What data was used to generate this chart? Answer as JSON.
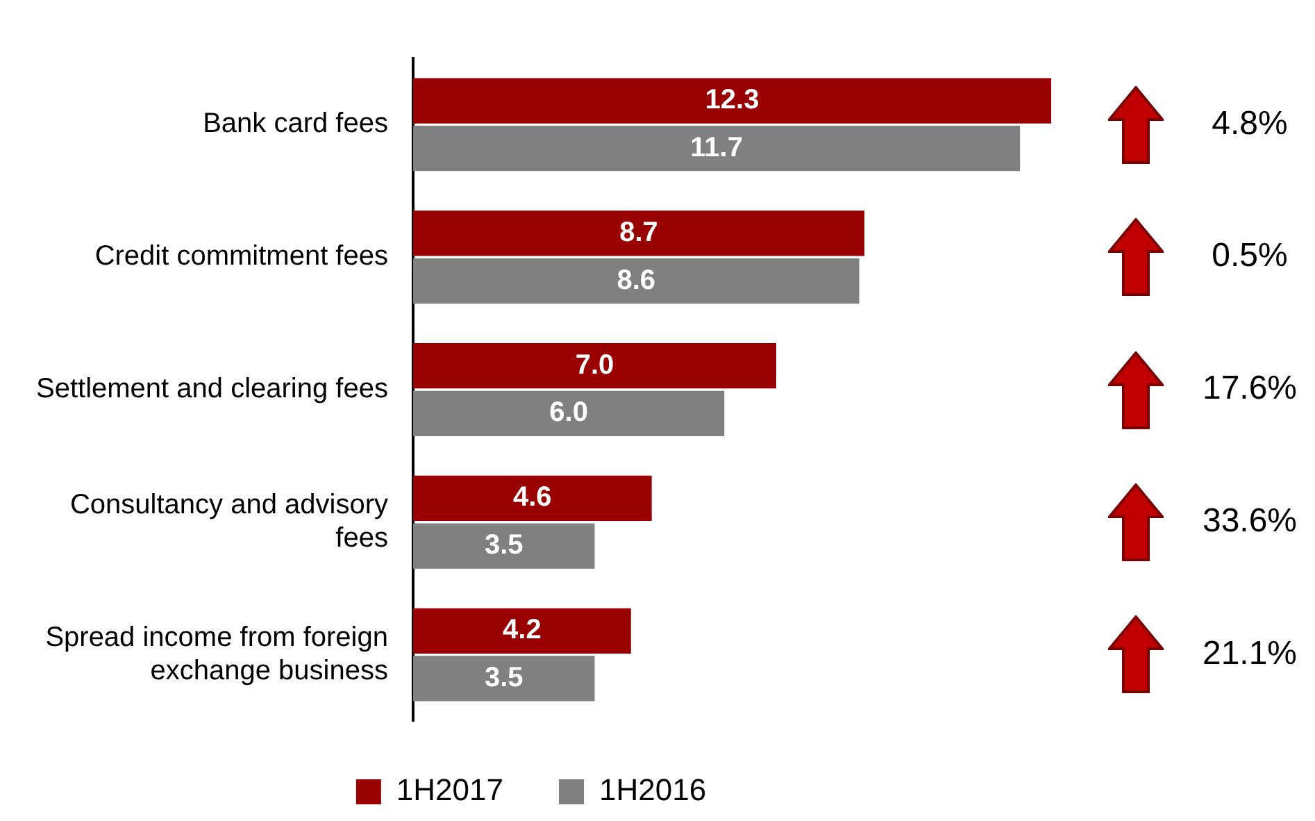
{
  "chart_data": {
    "type": "bar",
    "orientation": "horizontal",
    "categories": [
      "Bank card fees",
      "Credit commitment fees",
      "Settlement and clearing fees",
      "Consultancy and advisory fees",
      "Spread income from foreign exchange business"
    ],
    "series": [
      {
        "name": "1H2017",
        "color": "#990000",
        "values": [
          12.3,
          8.7,
          7.0,
          4.6,
          4.2
        ],
        "value_labels": [
          "12.3",
          "8.7",
          "7.0",
          "4.6",
          "4.2"
        ]
      },
      {
        "name": "1H2016",
        "color": "#808080",
        "values": [
          11.7,
          8.6,
          6.0,
          3.5,
          3.5
        ],
        "value_labels": [
          "11.7",
          "8.6",
          "6.0",
          "3.5",
          "3.5"
        ]
      }
    ],
    "annotations": [
      "4.8%",
      "0.5%",
      "17.6%",
      "33.6%",
      "21.1%"
    ],
    "grid": false,
    "legend": "bottom",
    "tick_labels": "y"
  }
}
